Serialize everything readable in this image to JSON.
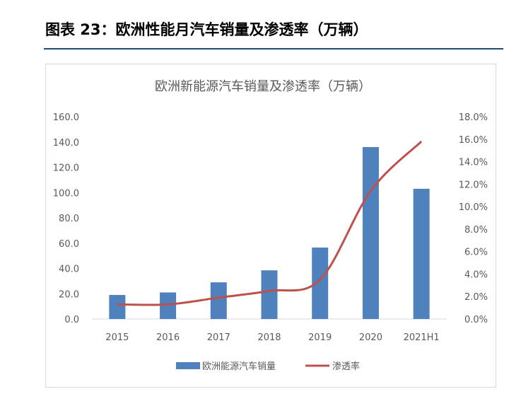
{
  "figure": {
    "label": "图表 23：欧洲性能月汽车销量及渗透率（万辆）"
  },
  "chart_data": {
    "type": "bar",
    "title": "欧洲新能源汽车销量及渗透率（万辆）",
    "categories": [
      "2015",
      "2016",
      "2017",
      "2018",
      "2019",
      "2020",
      "2021H1"
    ],
    "series": [
      {
        "name": "欧洲能源汽车销量",
        "type": "bar",
        "axis": "left",
        "values": [
          19.0,
          21.0,
          29.0,
          38.5,
          56.5,
          136.0,
          103.0
        ],
        "color": "#4F81BD"
      },
      {
        "name": "渗透率",
        "type": "line",
        "axis": "right",
        "values": [
          1.3,
          1.3,
          1.9,
          2.5,
          3.5,
          11.4,
          15.8
        ],
        "color": "#C0504D"
      }
    ],
    "y_left": {
      "ylim": [
        0,
        160
      ],
      "ticks": [
        "0.0",
        "20.0",
        "40.0",
        "60.0",
        "80.0",
        "100.0",
        "120.0",
        "140.0",
        "160.0"
      ]
    },
    "y_right": {
      "ylim": [
        0,
        18
      ],
      "ticks": [
        "0.0%",
        "2.0%",
        "4.0%",
        "6.0%",
        "8.0%",
        "10.0%",
        "12.0%",
        "14.0%",
        "16.0%",
        "18.0%"
      ]
    },
    "grid": false,
    "legend": "bottom"
  }
}
